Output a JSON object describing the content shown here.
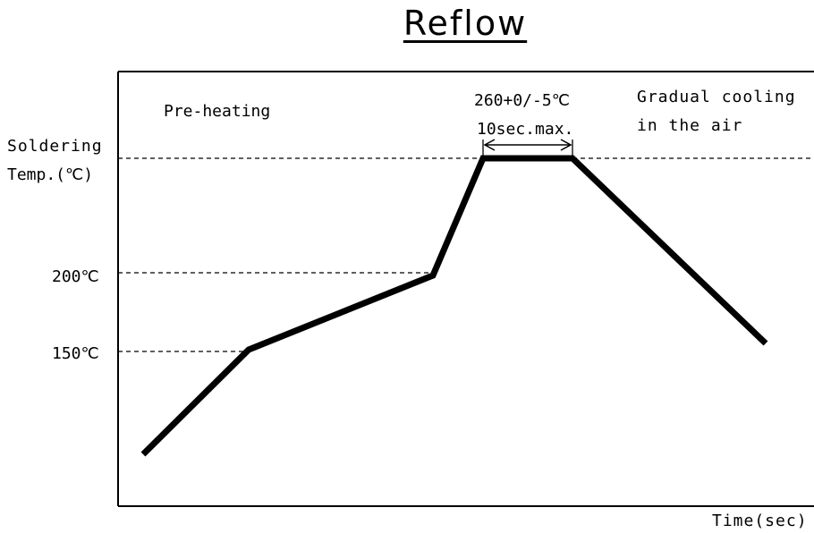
{
  "title": "Reflow",
  "labels": {
    "preheating": "Pre-heating",
    "peak_temp": "260+0/-5℃",
    "peak_time": "10sec.max.",
    "cooling_line1": "Gradual cooling",
    "cooling_line2": "in the air",
    "soldering_line1": "Soldering",
    "soldering_line2": "Temp.(℃)",
    "temp_200": "200℃",
    "temp_150": "150℃",
    "time_axis": "Time(sec)"
  },
  "colors": {
    "line": "#000000",
    "background": "#ffffff"
  }
}
